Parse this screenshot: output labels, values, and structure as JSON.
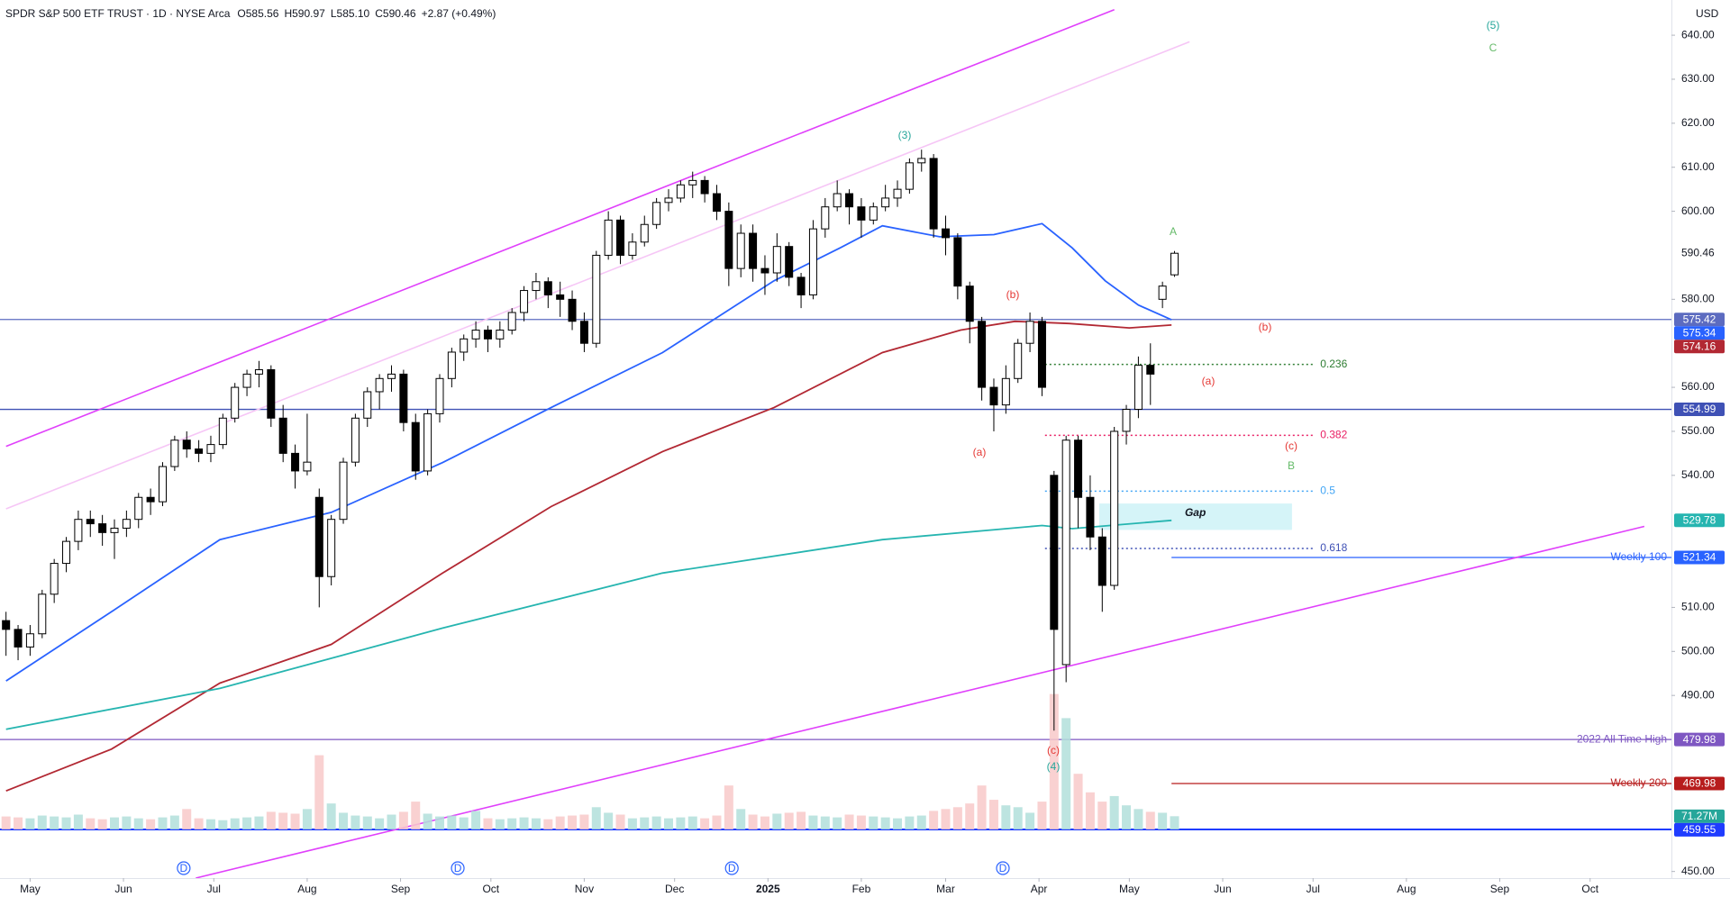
{
  "chart_data": {
    "type": "candlestick",
    "title": "SPDR S&P 500 ETF TRUST · 1D · NYSE Arca",
    "ohlc_labels": [
      "O585.56",
      "H590.97",
      "L585.10",
      "C590.46"
    ],
    "change_label": "+2.87 (+0.49%)",
    "currency": "USD",
    "xlim": [
      -10,
      545
    ],
    "xticks": [
      {
        "value": 0,
        "label": "May"
      },
      {
        "value": 31,
        "label": "Jun"
      },
      {
        "value": 61,
        "label": "Jul"
      },
      {
        "value": 92,
        "label": "Aug"
      },
      {
        "value": 123,
        "label": "Sep"
      },
      {
        "value": 153,
        "label": "Oct"
      },
      {
        "value": 184,
        "label": "Nov"
      },
      {
        "value": 214,
        "label": "Dec"
      },
      {
        "value": 245,
        "label": "2025"
      },
      {
        "value": 276,
        "label": "Feb"
      },
      {
        "value": 304,
        "label": "Mar"
      },
      {
        "value": 335,
        "label": "Apr"
      },
      {
        "value": 365,
        "label": "May"
      },
      {
        "value": 396,
        "label": "Jun"
      },
      {
        "value": 426,
        "label": "Jul"
      },
      {
        "value": 457,
        "label": "Aug"
      },
      {
        "value": 488,
        "label": "Sep"
      },
      {
        "value": 518,
        "label": "Oct"
      }
    ],
    "ylim": [
      448.5,
      648
    ],
    "yticks": [
      {
        "value": 450,
        "label": "450.00"
      },
      {
        "value": 490,
        "label": "490.00"
      },
      {
        "value": 500,
        "label": "500.00"
      },
      {
        "value": 510,
        "label": "510.00"
      },
      {
        "value": 540,
        "label": "540.00"
      },
      {
        "value": 550,
        "label": "550.00"
      },
      {
        "value": 560,
        "label": "560.00"
      },
      {
        "value": 580,
        "label": "580.00"
      },
      {
        "value": 600,
        "label": "600.00"
      },
      {
        "value": 610,
        "label": "610.00"
      },
      {
        "value": 620,
        "label": "620.00"
      },
      {
        "value": 630,
        "label": "630.00"
      },
      {
        "value": 640,
        "label": "640.00"
      }
    ],
    "grid": false,
    "candles": {
      "x": [
        -8,
        -4,
        0,
        4,
        8,
        12,
        16,
        20,
        24,
        28,
        32,
        36,
        40,
        44,
        48,
        52,
        56,
        60,
        64,
        68,
        72,
        76,
        80,
        84,
        88,
        92,
        96,
        100,
        104,
        108,
        112,
        116,
        120,
        124,
        128,
        132,
        136,
        140,
        144,
        148,
        152,
        156,
        160,
        164,
        168,
        172,
        176,
        180,
        184,
        188,
        192,
        196,
        200,
        204,
        208,
        212,
        216,
        220,
        224,
        228,
        232,
        236,
        240,
        244,
        248,
        252,
        256,
        260,
        264,
        268,
        272,
        276,
        280,
        284,
        288,
        292,
        296,
        300,
        304,
        308,
        312,
        316,
        320,
        324,
        328,
        332,
        336,
        340,
        344,
        348,
        352,
        356,
        360,
        364,
        368,
        372,
        376,
        380
      ],
      "ohlc": [
        [
          507,
          509,
          499,
          505
        ],
        [
          505,
          506,
          498,
          501
        ],
        [
          501,
          506,
          499,
          504
        ],
        [
          504,
          514,
          503,
          513
        ],
        [
          513,
          521,
          511,
          520
        ],
        [
          520,
          526,
          518,
          525
        ],
        [
          525,
          532,
          523,
          530
        ],
        [
          530,
          532,
          526,
          529
        ],
        [
          529,
          531,
          524,
          527
        ],
        [
          527,
          530,
          521,
          528
        ],
        [
          528,
          532,
          526,
          530
        ],
        [
          530,
          536,
          528,
          535
        ],
        [
          535,
          537,
          531,
          534
        ],
        [
          534,
          543,
          533,
          542
        ],
        [
          542,
          549,
          541,
          548
        ],
        [
          548,
          550,
          544,
          546
        ],
        [
          546,
          548,
          543,
          545
        ],
        [
          545,
          549,
          543,
          547
        ],
        [
          547,
          554,
          546,
          553
        ],
        [
          553,
          561,
          552,
          560
        ],
        [
          560,
          564,
          558,
          563
        ],
        [
          563,
          566,
          560,
          564
        ],
        [
          564,
          565,
          551,
          553
        ],
        [
          553,
          556,
          543,
          545
        ],
        [
          545,
          547,
          537,
          541
        ],
        [
          541,
          554,
          540,
          543
        ],
        [
          535,
          537,
          510,
          517
        ],
        [
          517,
          531,
          515,
          530
        ],
        [
          530,
          544,
          529,
          543
        ],
        [
          543,
          554,
          542,
          553
        ],
        [
          553,
          560,
          551,
          559
        ],
        [
          559,
          563,
          555,
          562
        ],
        [
          562,
          565,
          559,
          563
        ],
        [
          563,
          564,
          550,
          552
        ],
        [
          552,
          554,
          539,
          541
        ],
        [
          541,
          555,
          540,
          554
        ],
        [
          554,
          563,
          552,
          562
        ],
        [
          562,
          569,
          560,
          568
        ],
        [
          568,
          572,
          566,
          571
        ],
        [
          571,
          575,
          569,
          573
        ],
        [
          573,
          574,
          568,
          571
        ],
        [
          571,
          575,
          569,
          573
        ],
        [
          573,
          578,
          572,
          577
        ],
        [
          577,
          583,
          575,
          582
        ],
        [
          582,
          586,
          580,
          584
        ],
        [
          584,
          585,
          578,
          581
        ],
        [
          581,
          584,
          576,
          580
        ],
        [
          580,
          582,
          573,
          575
        ],
        [
          575,
          577,
          568,
          570
        ],
        [
          570,
          591,
          569,
          590
        ],
        [
          590,
          600,
          589,
          598
        ],
        [
          598,
          599,
          588,
          590
        ],
        [
          590,
          595,
          589,
          593
        ],
        [
          593,
          599,
          592,
          597
        ],
        [
          597,
          603,
          596,
          602
        ],
        [
          602,
          605,
          600,
          603
        ],
        [
          603,
          607,
          602,
          606
        ],
        [
          606,
          609,
          603,
          607
        ],
        [
          607,
          608,
          602,
          604
        ],
        [
          604,
          606,
          598,
          600
        ],
        [
          600,
          602,
          583,
          587
        ],
        [
          587,
          597,
          585,
          595
        ],
        [
          595,
          597,
          584,
          587
        ],
        [
          587,
          590,
          581,
          586
        ],
        [
          586,
          595,
          584,
          592
        ],
        [
          592,
          593,
          583,
          585
        ],
        [
          585,
          586,
          578,
          581
        ],
        [
          581,
          598,
          580,
          596
        ],
        [
          596,
          603,
          594,
          601
        ],
        [
          601,
          607,
          600,
          604
        ],
        [
          604,
          605,
          597,
          601
        ],
        [
          601,
          603,
          594,
          598
        ],
        [
          598,
          602,
          597,
          601
        ],
        [
          601,
          606,
          600,
          603
        ],
        [
          603,
          607,
          601,
          605
        ],
        [
          605,
          612,
          604,
          611
        ],
        [
          611,
          614,
          609,
          612
        ],
        [
          612,
          613,
          594,
          596
        ],
        [
          596,
          599,
          590,
          594
        ],
        [
          594,
          595,
          580,
          583
        ],
        [
          583,
          584,
          570,
          575
        ],
        [
          575,
          576,
          557,
          560
        ],
        [
          560,
          562,
          550,
          556
        ],
        [
          556,
          565,
          554,
          562
        ],
        [
          562,
          571,
          561,
          570
        ],
        [
          570,
          577,
          568,
          575
        ],
        [
          575,
          576,
          558,
          560
        ],
        [
          540,
          541,
          482,
          505
        ],
        [
          497,
          549,
          493,
          548
        ],
        [
          548,
          549,
          528,
          535
        ],
        [
          535,
          540,
          523,
          526
        ],
        [
          526,
          528,
          509,
          515
        ],
        [
          515,
          551,
          514,
          550
        ],
        [
          550,
          556,
          547,
          555
        ],
        [
          555,
          567,
          553,
          565
        ],
        [
          565,
          570,
          556,
          563
        ],
        [
          580,
          584,
          578,
          583
        ],
        [
          585.56,
          590.97,
          585.1,
          590.46
        ]
      ],
      "up_color": "#ffffff",
      "down_color": "#000000",
      "border_color": "#000000"
    },
    "volume": {
      "values": [
        70,
        65,
        60,
        75,
        70,
        65,
        80,
        60,
        55,
        65,
        70,
        60,
        55,
        65,
        75,
        110,
        60,
        55,
        50,
        60,
        65,
        70,
        95,
        90,
        85,
        110,
        400,
        140,
        90,
        75,
        70,
        60,
        80,
        95,
        150,
        85,
        70,
        75,
        65,
        100,
        60,
        55,
        60,
        65,
        60,
        55,
        70,
        75,
        80,
        120,
        90,
        80,
        60,
        65,
        70,
        60,
        65,
        70,
        60,
        75,
        237,
        110,
        80,
        70,
        85,
        90,
        95,
        75,
        70,
        65,
        80,
        75,
        70,
        65,
        60,
        70,
        75,
        100,
        110,
        120,
        140,
        237,
        160,
        130,
        120,
        90,
        150,
        730,
        600,
        300,
        200,
        150,
        180,
        130,
        110,
        95,
        90,
        71.27
      ],
      "last_label": "71.27M",
      "up_color": "#b2dfdb",
      "down_color": "#f8c9c9",
      "label_color": "#26a69a"
    },
    "moving_averages": [
      {
        "color": "#2962ff",
        "x": [
          -8,
          27,
          63,
          100,
          137,
          173,
          210,
          247,
          269,
          283,
          302,
          320,
          336,
          346,
          357,
          368,
          379
        ],
        "values": [
          493.3,
          509,
          525.4,
          531.6,
          542.9,
          555.4,
          567.9,
          584.2,
          591.7,
          596.7,
          594.2,
          594.7,
          597.2,
          591.7,
          584.2,
          578.7,
          575.34
        ]
      },
      {
        "color": "#b22833",
        "x": [
          -8,
          27,
          63,
          100,
          137,
          173,
          210,
          247,
          283,
          309,
          327,
          345,
          365,
          379
        ],
        "values": [
          468.3,
          477.8,
          492.8,
          501.6,
          517.8,
          532.9,
          545.4,
          555.4,
          567.9,
          573,
          575,
          574.5,
          573.5,
          574.16
        ]
      },
      {
        "color": "#26b5b0",
        "x": [
          -8,
          63,
          137,
          210,
          283,
          336,
          346,
          379
        ],
        "values": [
          482.3,
          491.6,
          505.3,
          517.8,
          525.4,
          528.6,
          527.9,
          529.78
        ]
      }
    ],
    "trendlines": [
      {
        "color": "#e040fb",
        "x": [
          -8,
          360
        ],
        "values": [
          546.6,
          645.8
        ]
      },
      {
        "color": "#f6c6f6",
        "x": [
          -8,
          385
        ],
        "values": [
          532.4,
          638.5
        ]
      },
      {
        "color": "#e040fb",
        "x": [
          55,
          536
        ],
        "values": [
          448.5,
          528.4
        ]
      }
    ],
    "levels": [
      {
        "value": 575.42,
        "color": "#5c6bc0"
      },
      {
        "value": 554.99,
        "color": "#3f51b5"
      },
      {
        "value": 479.98,
        "color": "#7e57c2",
        "label": "2022 All Time High"
      },
      {
        "value": 459.55,
        "color": "#1f3cff"
      },
      {
        "value": 521.34,
        "color": "#2962ff",
        "label": "Weekly 100",
        "start": 379
      },
      {
        "value": 469.98,
        "color": "#b71c1c",
        "label": "Weekly 200",
        "start": 379
      }
    ],
    "fib_x": [
      337,
      426
    ],
    "fib_levels": [
      {
        "ratio": 0.236,
        "value": 565.2,
        "color": "#2e7d32"
      },
      {
        "ratio": 0.382,
        "value": 549.1,
        "color": "#e91e63"
      },
      {
        "ratio": 0.5,
        "value": 536.4,
        "color": "#42a5f5"
      },
      {
        "ratio": 0.618,
        "value": 523.4,
        "color": "#3f51b5"
      }
    ],
    "gap": {
      "x": [
        355,
        419
      ],
      "range": [
        527.6,
        533.6
      ],
      "label": "Gap",
      "color": "#b2ebf2"
    },
    "annotations": [
      {
        "text": "(3)",
        "color": "#26a69a"
      },
      {
        "text": "(5)",
        "color": "#26a69a"
      },
      {
        "text": "C",
        "color": "#66bb6a"
      },
      {
        "text": "A",
        "color": "#66bb6a"
      },
      {
        "text": "(b)",
        "color": "#e53935"
      },
      {
        "text": "(b)",
        "color": "#e53935"
      },
      {
        "text": "(a)",
        "color": "#e53935"
      },
      {
        "text": "(a)",
        "color": "#e53935"
      },
      {
        "text": "(c)",
        "color": "#e53935"
      },
      {
        "text": "B",
        "color": "#66bb6a"
      },
      {
        "text": "(c)",
        "color": "#e53935"
      },
      {
        "text": "(4)",
        "color": "#26a69a"
      }
    ],
    "dividends": {
      "x": [
        51,
        142,
        233,
        323
      ],
      "label": "D",
      "color": "#2962ff"
    }
  }
}
